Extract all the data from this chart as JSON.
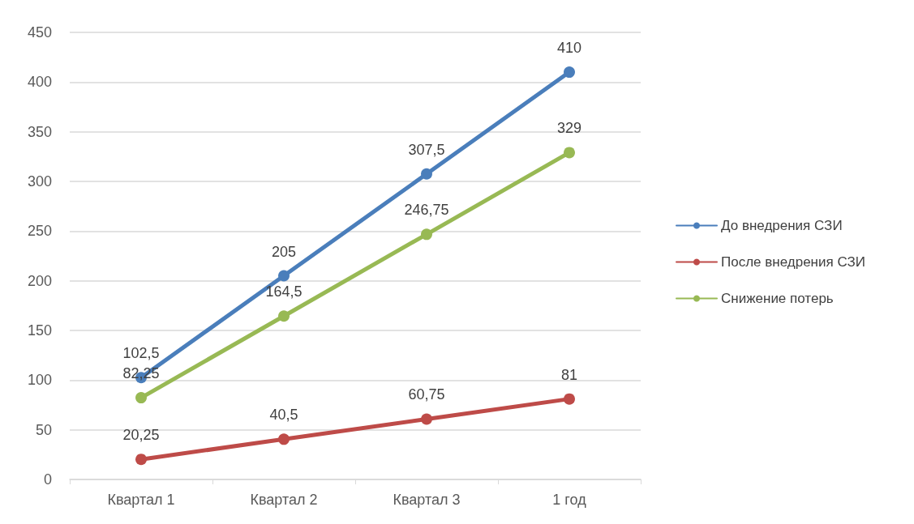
{
  "chart_data": {
    "type": "line",
    "categories": [
      "Квартал 1",
      "Квартал 2",
      "Квартал 3",
      "1 год"
    ],
    "series": [
      {
        "name": "До внедрения СЗИ",
        "color": "#4a7ebb",
        "values": [
          102.5,
          205,
          307.5,
          410
        ],
        "value_labels": [
          "102,5",
          "205",
          "307,5",
          "410"
        ]
      },
      {
        "name": "После внедрения СЗИ",
        "color": "#be4b48",
        "values": [
          20.25,
          40.5,
          60.75,
          81
        ],
        "value_labels": [
          "20,25",
          "40,5",
          "60,75",
          "81"
        ]
      },
      {
        "name": "Снижение потерь",
        "color": "#98b954",
        "values": [
          82.25,
          164.5,
          246.75,
          329
        ],
        "value_labels": [
          "82,25",
          "164,5",
          "246,75",
          "329"
        ]
      }
    ],
    "ylim": [
      0,
      450
    ],
    "yticks": [
      0,
      50,
      100,
      150,
      200,
      250,
      300,
      350,
      400,
      450
    ],
    "grid": "y",
    "legend": "right",
    "marker": "circle",
    "line_style": "solid"
  }
}
